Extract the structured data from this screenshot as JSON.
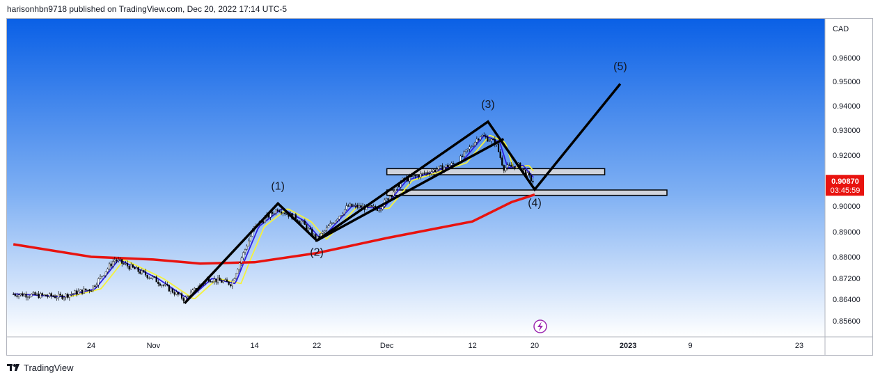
{
  "header": {
    "text": "harisonhbn9718 published on TradingView.com, Dec 20, 2022 17:14 UTC-5"
  },
  "footer": {
    "brand": "TradingView",
    "logo_icon": "tradingview-logo-icon"
  },
  "colors": {
    "bg_top": "#0a60e6",
    "bg_bottom": "#ffffff",
    "ma_long": "#e8130f",
    "ma_fast": "#2d1fe0",
    "ma_slow": "#f5f23b",
    "wave_line": "#000000",
    "zone_fill": "#d1d4dc",
    "price_badge": "#e8130f"
  },
  "chart_data": {
    "type": "candlestick",
    "currency_label": "CAD",
    "y_ticks": [
      "0.96000",
      "0.95000",
      "0.94000",
      "0.93000",
      "0.92000",
      "0.90000",
      "0.89000",
      "0.88000",
      "0.87200",
      "0.86400",
      "0.85600"
    ],
    "x_ticks": [
      "24",
      "Nov",
      "14",
      "22",
      "Dec",
      "12",
      "20",
      "2023",
      "9",
      "23"
    ],
    "bold_x_ticks": [
      "2023"
    ],
    "last_price": "0.90870",
    "countdown": "03:45:59",
    "wave_labels": [
      "(1)",
      "(2)",
      "(3)",
      "(4)",
      "(5)"
    ],
    "wave_points": [
      {
        "label": "start",
        "date": "Nov 5",
        "price": 0.8625
      },
      {
        "label": "(1)",
        "date": "Nov 17",
        "price": 0.901
      },
      {
        "label": "(2)",
        "date": "Nov 22",
        "price": 0.8865
      },
      {
        "label": "(3)",
        "date": "Dec 14",
        "price": 0.9335
      },
      {
        "label": "(4)",
        "date": "Dec 20",
        "price": 0.9065
      },
      {
        "label": "(5)",
        "date": "Dec 31",
        "price": 0.949
      }
    ],
    "trend_line": [
      {
        "date": "Nov 22",
        "price": 0.8865
      },
      {
        "date": "Dec 16",
        "price": 0.9265
      }
    ],
    "zones": [
      {
        "from": "Dec 1",
        "to": "Dec 29",
        "low": 0.9123,
        "high": 0.9147
      },
      {
        "from": "Dec 1",
        "to": "Jan 6",
        "low": 0.9042,
        "high": 0.9063
      }
    ],
    "ma_long": {
      "name": "",
      "points": [
        {
          "date": "Oct 14",
          "price": 0.885
        },
        {
          "date": "Oct 24",
          "price": 0.88
        },
        {
          "date": "Nov 1",
          "price": 0.879
        },
        {
          "date": "Nov 7",
          "price": 0.8775
        },
        {
          "date": "Nov 14",
          "price": 0.878
        },
        {
          "date": "Nov 22",
          "price": 0.8815
        },
        {
          "date": "Dec 1",
          "price": 0.8875
        },
        {
          "date": "Dec 12",
          "price": 0.894
        },
        {
          "date": "Dec 17",
          "price": 0.9015
        },
        {
          "date": "Dec 20",
          "price": 0.9045
        }
      ]
    },
    "price_path": [
      {
        "date": "Oct 14",
        "price": 0.866
      },
      {
        "date": "Oct 20",
        "price": 0.865
      },
      {
        "date": "Oct 24",
        "price": 0.868
      },
      {
        "date": "Oct 27",
        "price": 0.879
      },
      {
        "date": "Nov 1",
        "price": 0.872
      },
      {
        "date": "Nov 5",
        "price": 0.864
      },
      {
        "date": "Nov 8",
        "price": 0.872
      },
      {
        "date": "Nov 11",
        "price": 0.87
      },
      {
        "date": "Nov 14",
        "price": 0.892
      },
      {
        "date": "Nov 17",
        "price": 0.899
      },
      {
        "date": "Nov 20",
        "price": 0.894
      },
      {
        "date": "Nov 22",
        "price": 0.887
      },
      {
        "date": "Nov 26",
        "price": 0.9
      },
      {
        "date": "Nov 30",
        "price": 0.899
      },
      {
        "date": "Dec 3",
        "price": 0.91
      },
      {
        "date": "Dec 7",
        "price": 0.914
      },
      {
        "date": "Dec 10",
        "price": 0.917
      },
      {
        "date": "Dec 13",
        "price": 0.928
      },
      {
        "date": "Dec 15",
        "price": 0.925
      },
      {
        "date": "Dec 16",
        "price": 0.915
      },
      {
        "date": "Dec 18",
        "price": 0.916
      },
      {
        "date": "Dec 20",
        "price": 0.9087
      }
    ]
  }
}
